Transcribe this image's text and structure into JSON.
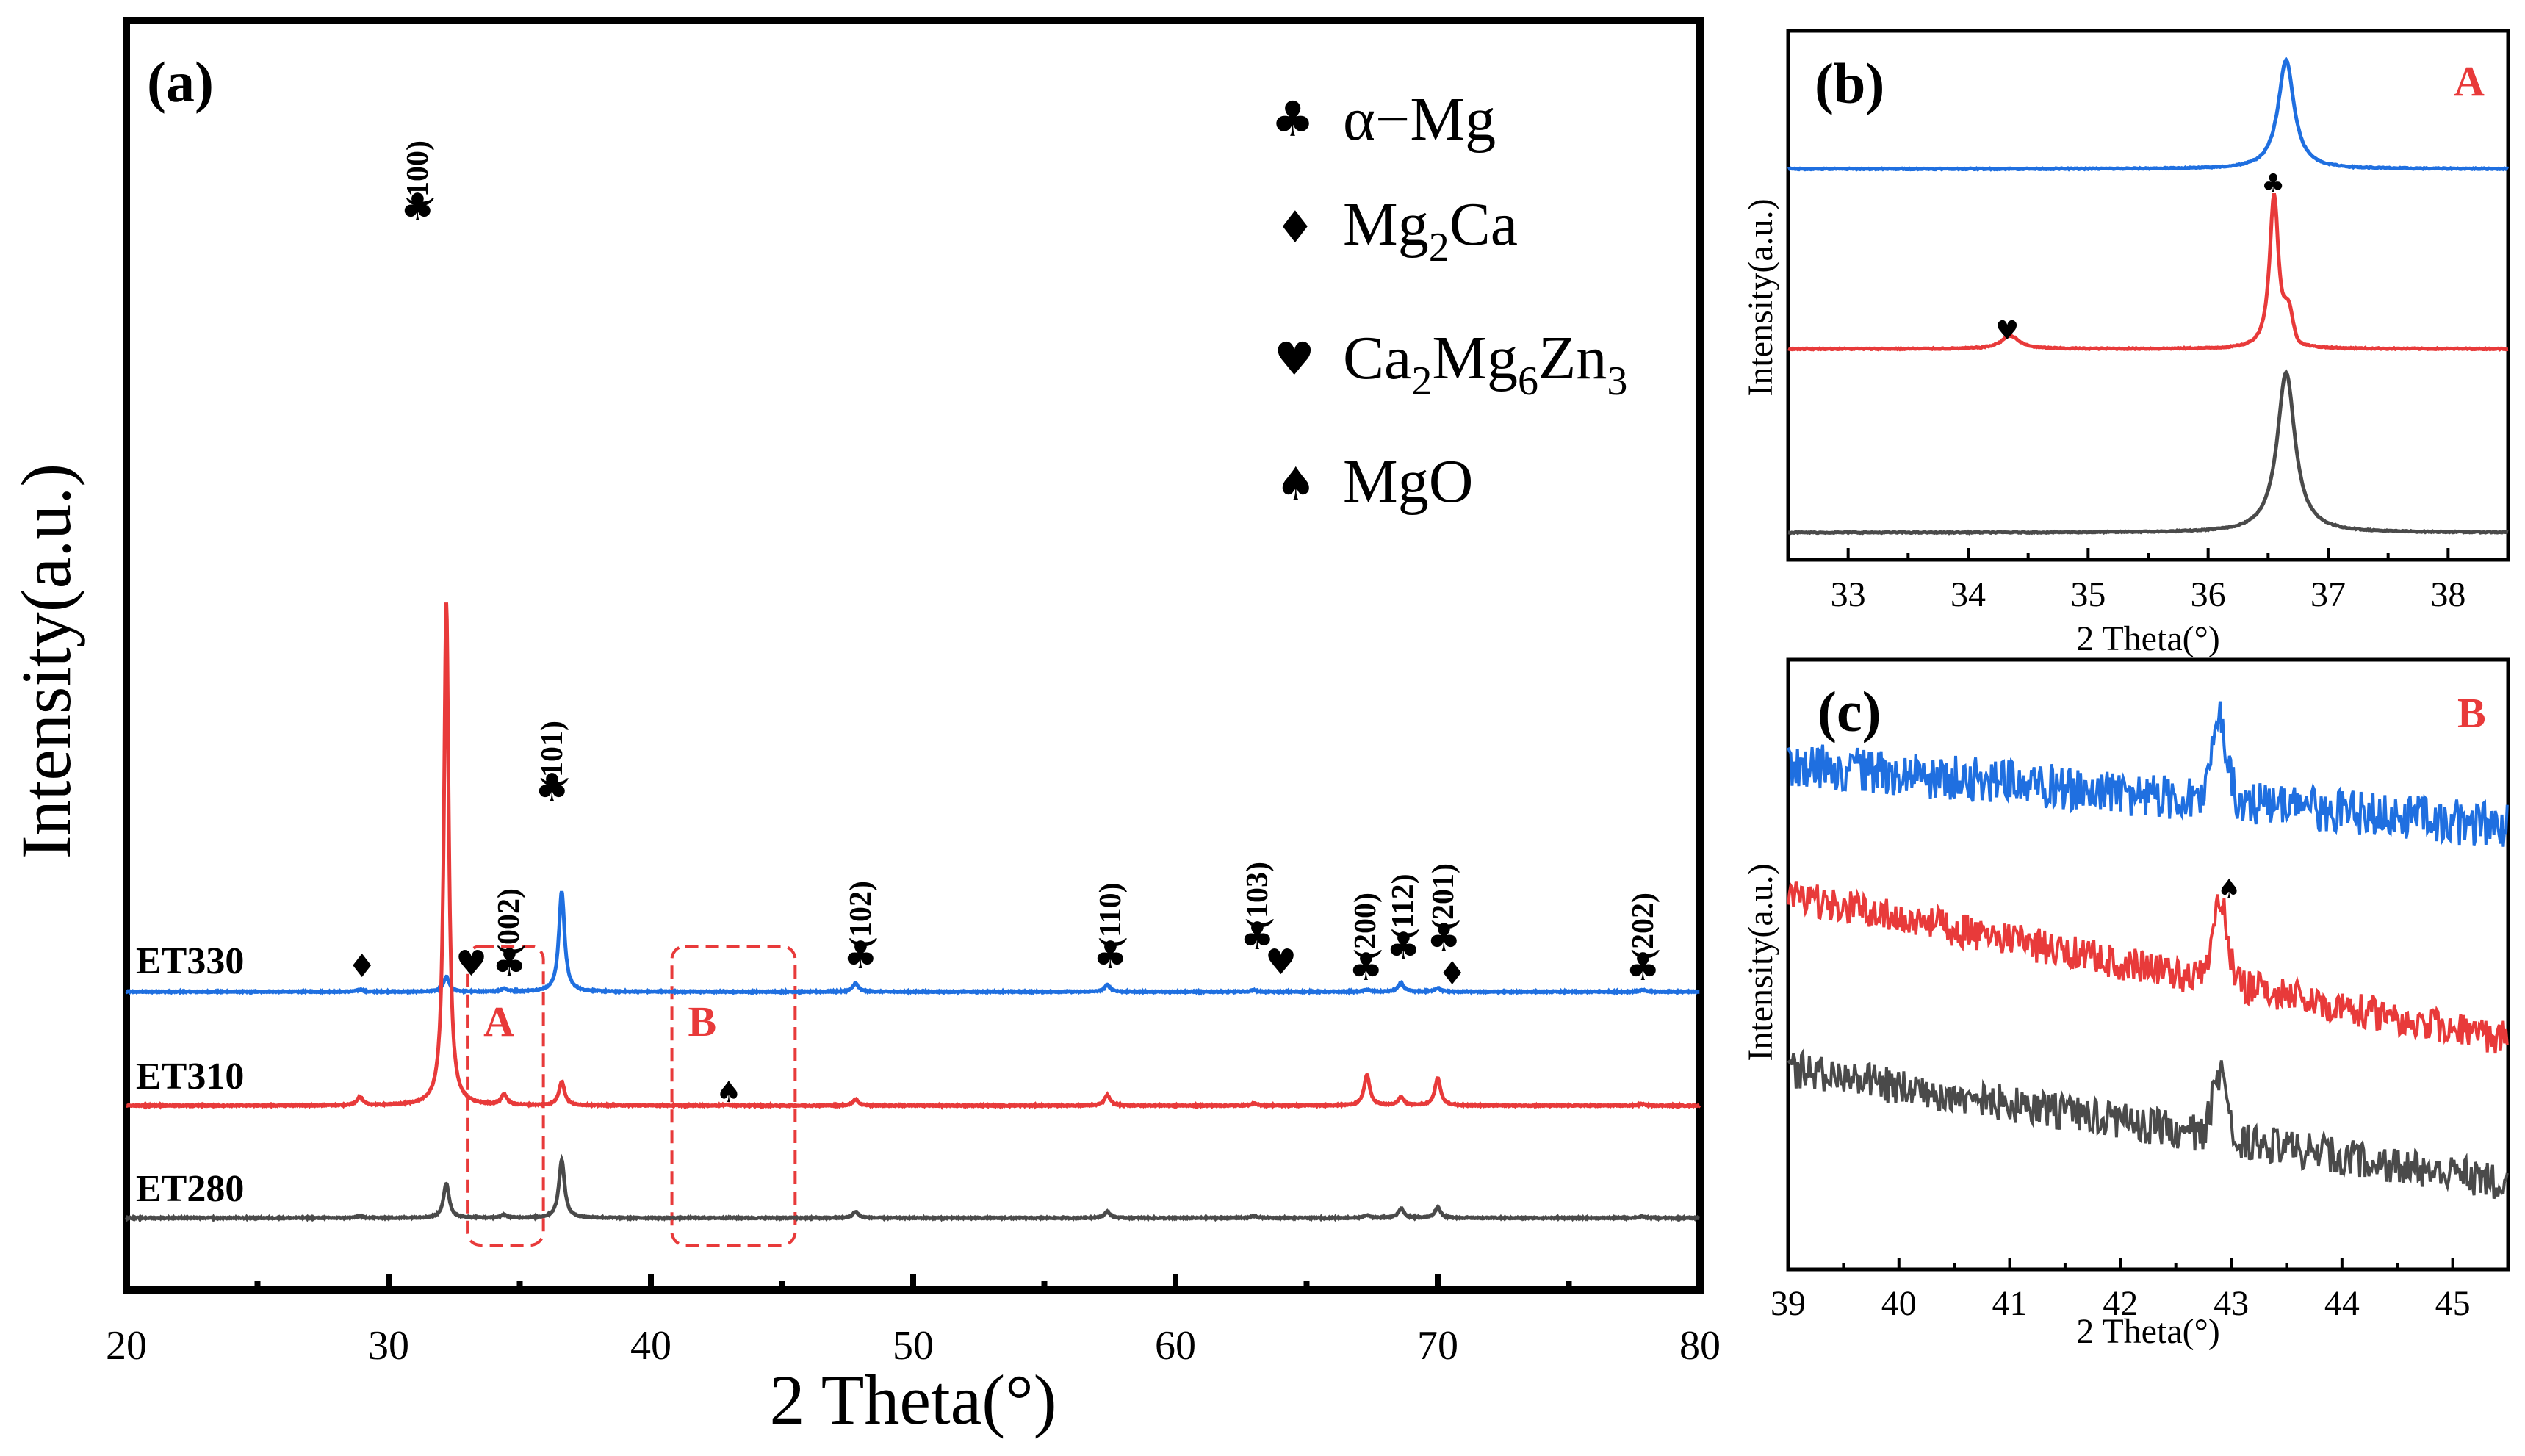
{
  "chart_data": [
    {
      "panel": "(a)",
      "type": "line",
      "xlabel": "2 Theta(°)",
      "ylabel": "Intensity(a.u.)",
      "xlim": [
        20,
        80
      ],
      "xticks": [
        20,
        30,
        40,
        50,
        60,
        70,
        80
      ],
      "series": [
        {
          "name": "ET330",
          "color": "#1f6fe0",
          "offset": 2.2,
          "peaks": [
            [
              28.9,
              0.04
            ],
            [
              32.2,
              0.28
            ],
            [
              34.4,
              0.06
            ],
            [
              36.6,
              1.9
            ],
            [
              47.8,
              0.16
            ],
            [
              57.4,
              0.13
            ],
            [
              63.0,
              0.03
            ],
            [
              67.3,
              0.04
            ],
            [
              68.6,
              0.16
            ],
            [
              70.0,
              0.07
            ],
            [
              77.8,
              0.03
            ]
          ]
        },
        {
          "name": "ET310",
          "color": "#e83a3a",
          "offset": 1.15,
          "peaks": [
            [
              28.9,
              0.16
            ],
            [
              32.2,
              9.5
            ],
            [
              34.4,
              0.2
            ],
            [
              36.6,
              0.45
            ],
            [
              42.9,
              0.02
            ],
            [
              47.8,
              0.12
            ],
            [
              57.4,
              0.2
            ],
            [
              63.0,
              0.04
            ],
            [
              67.3,
              0.58
            ],
            [
              68.6,
              0.16
            ],
            [
              70.0,
              0.52
            ],
            [
              77.8,
              0.03
            ]
          ]
        },
        {
          "name": "ET280",
          "color": "#4a4a4a",
          "offset": 0.0,
          "peaks": [
            [
              28.9,
              0.04
            ],
            [
              32.2,
              0.65
            ],
            [
              34.4,
              0.06
            ],
            [
              36.6,
              1.1
            ],
            [
              47.8,
              0.12
            ],
            [
              57.4,
              0.12
            ],
            [
              63.0,
              0.04
            ],
            [
              67.3,
              0.05
            ],
            [
              68.6,
              0.18
            ],
            [
              70.0,
              0.2
            ],
            [
              77.8,
              0.03
            ]
          ]
        }
      ],
      "peak_labels": [
        "(100)",
        "(002)",
        "(101)",
        "(102)",
        "(110)",
        "(103)",
        "(200)",
        "(112)",
        "(201)",
        "(202)"
      ],
      "legend": [
        {
          "symbol": "♣",
          "label": "α−Mg"
        },
        {
          "symbol": "♦",
          "label_main": "Mg",
          "sub1": "2",
          "label_tail": "Ca"
        },
        {
          "symbol": "♥",
          "label_main": "Ca",
          "sub1": "2",
          "mid": "Mg",
          "sub2": "6",
          "end": "Zn",
          "sub3": "3"
        },
        {
          "symbol": "♠",
          "label": "MgO"
        }
      ],
      "boxes": [
        {
          "label": "A",
          "range": [
            33.0,
            35.9
          ]
        },
        {
          "label": "B",
          "range": [
            40.8,
            45.5
          ]
        }
      ],
      "legend_position": "top-right"
    },
    {
      "panel": "(b)",
      "type": "line",
      "box_label": "A",
      "xlabel": "2 Theta(°)",
      "ylabel": "Intensity(a.u.)",
      "xlim": [
        32.5,
        38.5
      ],
      "xticks": [
        33,
        34,
        35,
        36,
        37,
        38
      ],
      "series": [
        {
          "name": "ET330",
          "color": "#1f6fe0",
          "peak_at": 36.65
        },
        {
          "name": "ET310",
          "color": "#e83a3a",
          "peak_at": 36.55,
          "minor_peak_at": 34.35
        },
        {
          "name": "ET280",
          "color": "#4a4a4a",
          "peak_at": 36.65
        }
      ]
    },
    {
      "panel": "(c)",
      "type": "line",
      "box_label": "B",
      "xlabel": "2 Theta(°)",
      "ylabel": "Intensity(a.u.)",
      "xlim": [
        39,
        45.5
      ],
      "xticks": [
        39,
        40,
        41,
        42,
        43,
        44,
        45
      ],
      "series": [
        {
          "name": "ET330",
          "color": "#1f6fe0",
          "peak_at": 42.9
        },
        {
          "name": "ET310",
          "color": "#e83a3a",
          "peak_at": 42.9
        },
        {
          "name": "ET280",
          "color": "#4a4a4a",
          "peak_at": 42.9
        }
      ]
    }
  ]
}
